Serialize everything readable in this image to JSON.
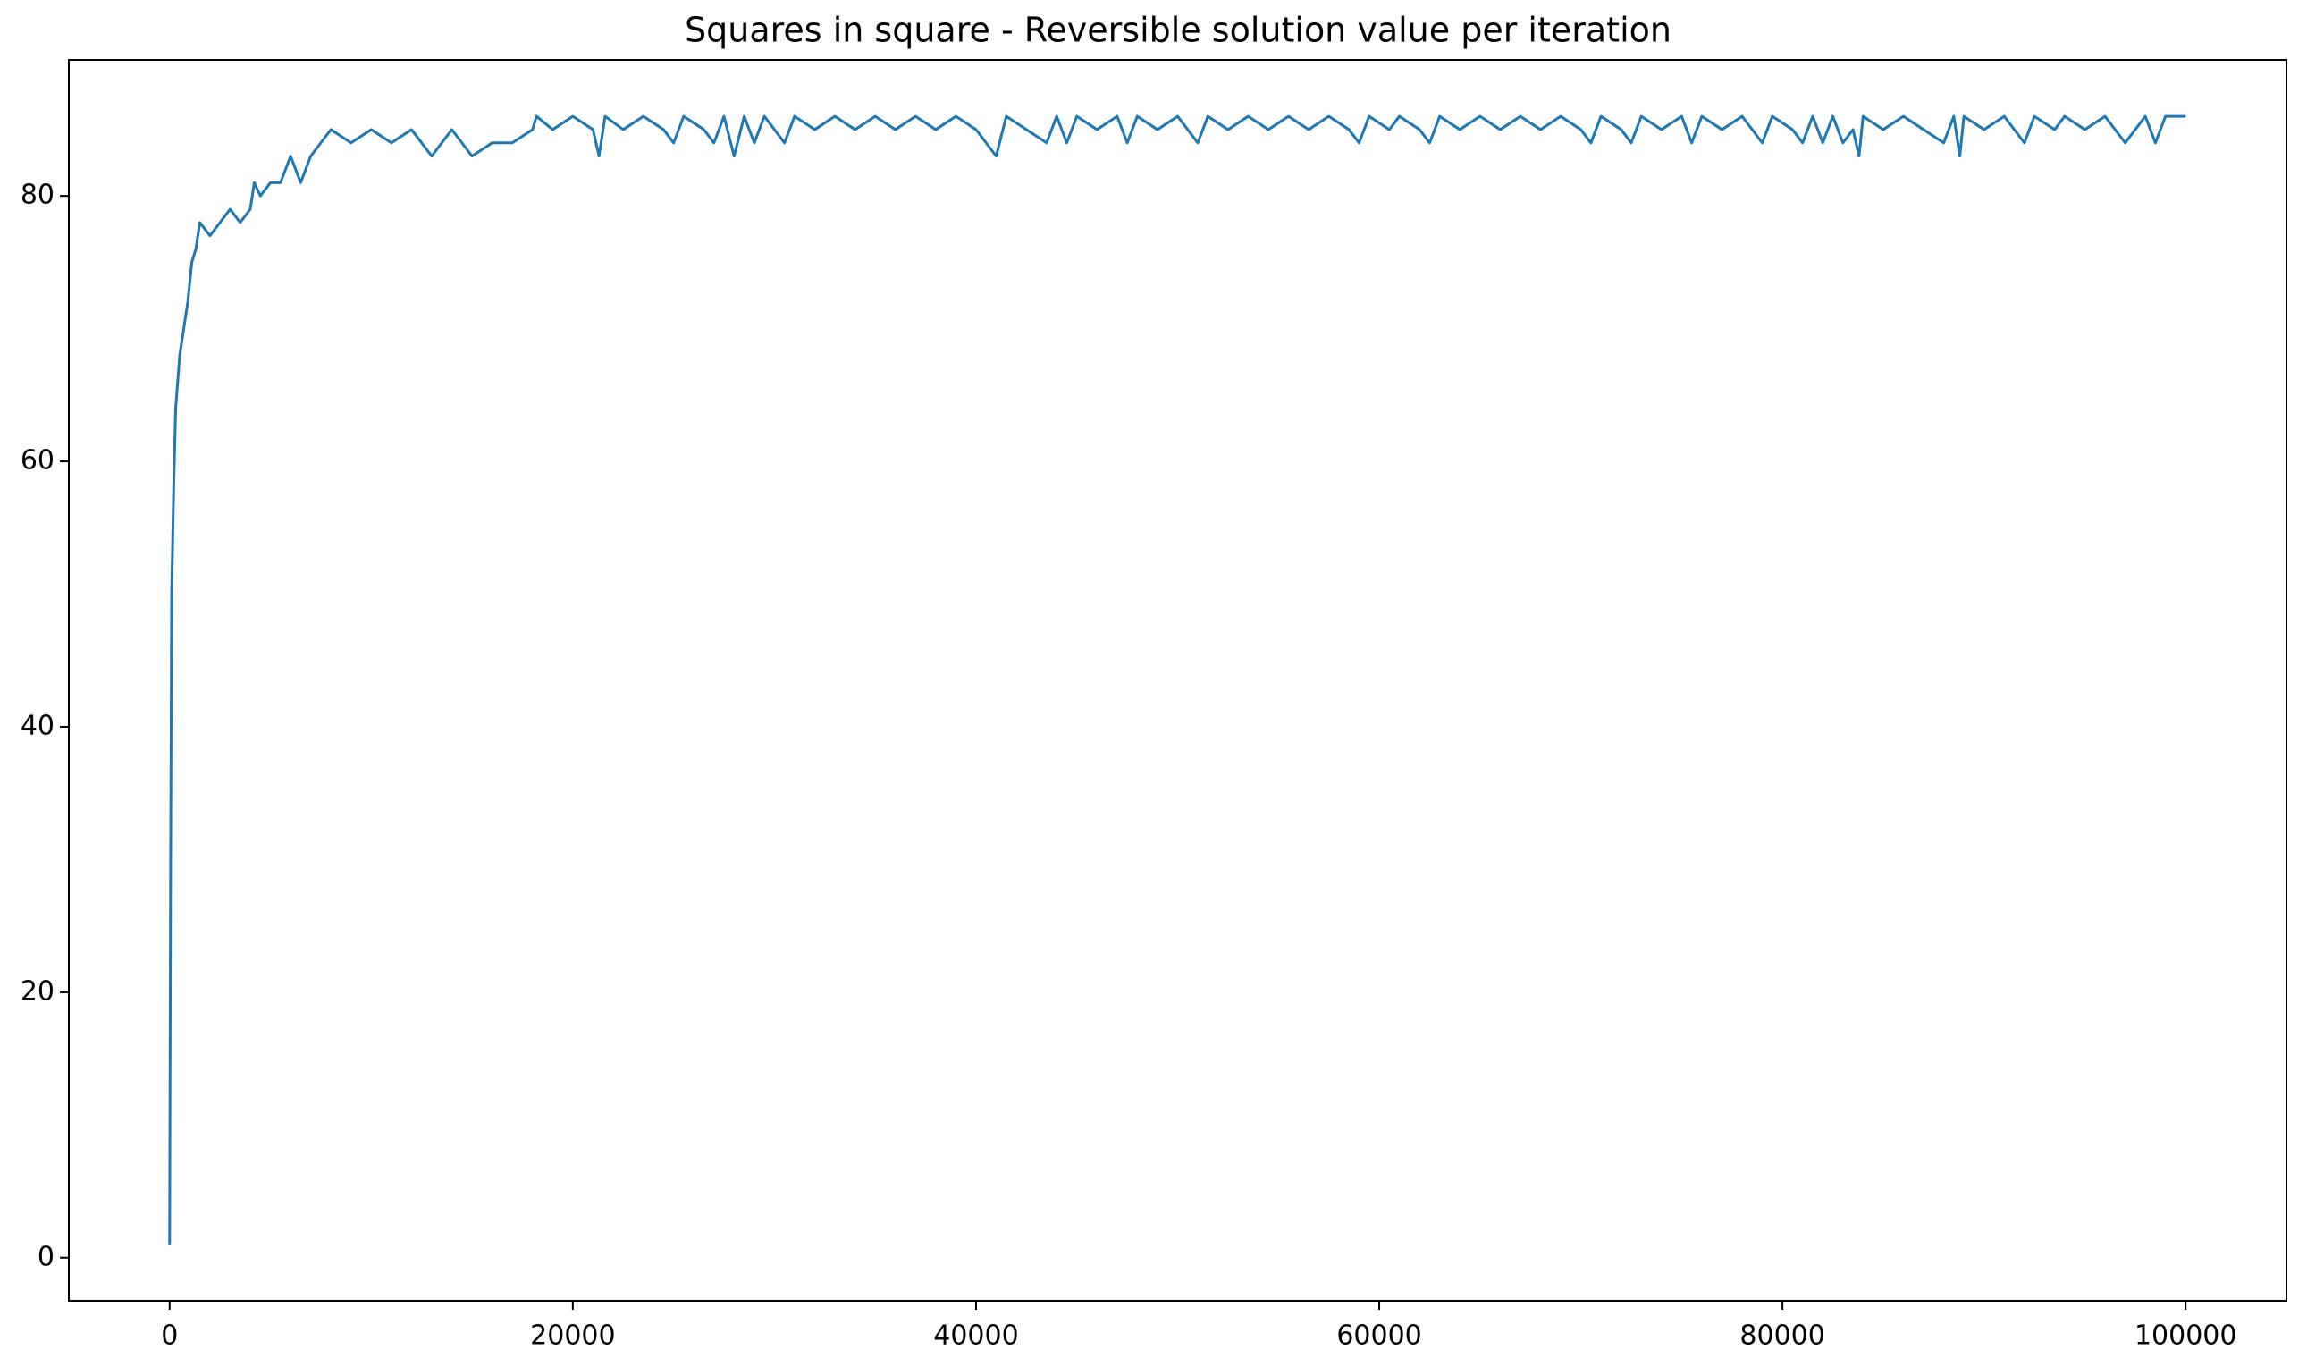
{
  "chart_data": {
    "type": "line",
    "title": "Squares in square - Reversible solution value per iteration",
    "series": [
      {
        "name": null,
        "color": "#1f77b4",
        "x": [
          0,
          50,
          100,
          200,
          300,
          500,
          700,
          900,
          1100,
          1300,
          1500,
          2000,
          2500,
          3000,
          3500,
          4000,
          4200,
          4500,
          5000,
          5500,
          6000,
          6500,
          7000,
          7500,
          8000,
          9000,
          10000,
          11000,
          12000,
          13000,
          14000,
          15000,
          16000,
          17000,
          18000,
          18200,
          19000,
          20000,
          21000,
          21300,
          21600,
          22500,
          23500,
          24500,
          25000,
          25500,
          26500,
          27000,
          27500,
          28000,
          28500,
          29000,
          29500,
          30500,
          31000,
          32000,
          33000,
          34000,
          35000,
          36000,
          37000,
          38000,
          39000,
          40000,
          41000,
          41500,
          42500,
          43500,
          44000,
          44500,
          45000,
          46000,
          47000,
          47500,
          48000,
          49000,
          50000,
          50500,
          51000,
          51500,
          52500,
          53500,
          54500,
          55500,
          56500,
          57500,
          58500,
          59000,
          59500,
          60500,
          61000,
          62000,
          62500,
          63000,
          64000,
          65000,
          66000,
          67000,
          68000,
          69000,
          70000,
          70500,
          71000,
          72000,
          72500,
          73000,
          74000,
          75000,
          75500,
          76000,
          77000,
          78000,
          79000,
          79500,
          80500,
          81000,
          81500,
          82000,
          82500,
          83000,
          83500,
          83800,
          84000,
          85000,
          86000,
          87000,
          88000,
          88500,
          88800,
          89000,
          90000,
          91000,
          92000,
          92500,
          93500,
          94000,
          95000,
          96000,
          97000,
          97500,
          98000,
          98500,
          99000,
          100000
        ],
        "values": [
          1,
          30,
          50,
          58,
          64,
          68,
          70,
          72,
          75,
          76,
          78,
          77,
          78,
          79,
          78,
          79,
          81,
          80,
          81,
          81,
          83,
          81,
          83,
          84,
          85,
          84,
          85,
          84,
          85,
          83,
          85,
          83,
          84,
          84,
          85,
          86,
          85,
          86,
          85,
          83,
          86,
          85,
          86,
          85,
          84,
          86,
          85,
          84,
          86,
          83,
          86,
          84,
          86,
          84,
          86,
          85,
          86,
          85,
          86,
          85,
          86,
          85,
          86,
          85,
          83,
          86,
          85,
          84,
          86,
          84,
          86,
          85,
          86,
          84,
          86,
          85,
          86,
          85,
          84,
          86,
          85,
          86,
          85,
          86,
          85,
          86,
          85,
          84,
          86,
          85,
          86,
          85,
          84,
          86,
          85,
          86,
          85,
          86,
          85,
          86,
          85,
          84,
          86,
          85,
          84,
          86,
          85,
          86,
          84,
          86,
          85,
          86,
          84,
          86,
          85,
          84,
          86,
          84,
          86,
          84,
          85,
          83,
          86,
          85,
          86,
          85,
          84,
          86,
          83,
          86,
          85,
          86,
          84,
          86,
          85,
          86,
          85,
          86,
          84,
          85,
          86,
          84,
          86,
          86
        ]
      }
    ],
    "xlim": [
      -5000,
      105000
    ],
    "ylim": [
      -3.25,
      90.25
    ],
    "xticks": [
      0,
      20000,
      40000,
      60000,
      80000,
      100000
    ],
    "yticks": [
      0,
      20,
      40,
      60,
      80
    ],
    "grid": false
  }
}
